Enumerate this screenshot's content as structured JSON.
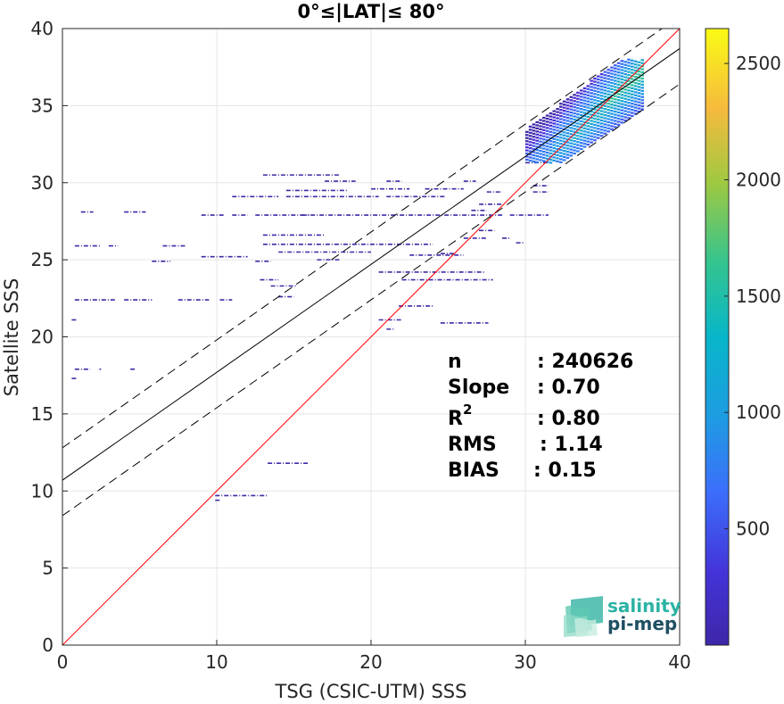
{
  "chart_data": {
    "type": "heatmap",
    "title": "0°≤|LAT|≤ 80°",
    "xlabel": "TSG (CSIC-UTM) SSS",
    "ylabel": "Satellite SSS",
    "xlim": [
      0,
      40
    ],
    "ylim": [
      0,
      40
    ],
    "xticks": [
      "0",
      "10",
      "20",
      "30",
      "40"
    ],
    "yticks": [
      "0",
      "5",
      "10",
      "15",
      "20",
      "25",
      "30",
      "35",
      "40"
    ],
    "grid": true,
    "colorbar": {
      "min": 0,
      "max": 2650,
      "ticks": [
        "500",
        "1000",
        "1500",
        "2000",
        "2500"
      ],
      "tick_values": [
        500,
        1000,
        1500,
        2000,
        2500
      ],
      "colormap": "parula"
    },
    "lines": [
      {
        "name": "1:1 line",
        "slope": 1.0,
        "intercept": 0.0,
        "color": "#ff0000",
        "style": "solid"
      },
      {
        "name": "fit",
        "slope": 0.7,
        "intercept": 10.7,
        "color": "#000000",
        "style": "solid"
      },
      {
        "name": "fit + rms",
        "slope": 0.7,
        "intercept": 12.8,
        "color": "#000000",
        "style": "dashed"
      },
      {
        "name": "fit - rms",
        "slope": 0.7,
        "intercept": 8.4,
        "color": "#000000",
        "style": "dashed"
      }
    ],
    "segments": [
      [
        0.6,
        21.1,
        0.9
      ],
      [
        0.6,
        17.3,
        0.9
      ],
      [
        0.8,
        17.9,
        1.8
      ],
      [
        2.4,
        17.9,
        2.5
      ],
      [
        4.4,
        17.9,
        4.7
      ],
      [
        0.8,
        22.4,
        3.5
      ],
      [
        4.0,
        22.4,
        5.8
      ],
      [
        7.5,
        22.4,
        9.5
      ],
      [
        10.2,
        22.4,
        11.0
      ],
      [
        0.8,
        25.9,
        2.5
      ],
      [
        3.0,
        25.9,
        3.6
      ],
      [
        6.5,
        25.9,
        8.0
      ],
      [
        5.8,
        24.9,
        7.0
      ],
      [
        9.0,
        25.2,
        12.0
      ],
      [
        12.5,
        24.9,
        13.5
      ],
      [
        1.2,
        28.1,
        2.0
      ],
      [
        4.0,
        28.1,
        5.4
      ],
      [
        9.0,
        27.9,
        10.5
      ],
      [
        11.0,
        27.9,
        12.0
      ],
      [
        12.5,
        27.9,
        16.0
      ],
      [
        15.5,
        27.9,
        28.5
      ],
      [
        13.0,
        26.6,
        17.0
      ],
      [
        13.0,
        26.0,
        24.0
      ],
      [
        14.0,
        25.5,
        20.0
      ],
      [
        11.0,
        29.1,
        14.0
      ],
      [
        14.5,
        29.1,
        20.5
      ],
      [
        21.0,
        29.1,
        24.8
      ],
      [
        13.0,
        30.5,
        18.0
      ],
      [
        17.0,
        30.1,
        19.0
      ],
      [
        20.0,
        29.6,
        22.5
      ],
      [
        23.5,
        29.6,
        26.0
      ],
      [
        14.5,
        29.5,
        18.5
      ],
      [
        21.0,
        30.1,
        22.0
      ],
      [
        26.0,
        30.1,
        26.8
      ],
      [
        12.8,
        23.7,
        14.0
      ],
      [
        13.5,
        23.3,
        15.2
      ],
      [
        14.0,
        22.6,
        15.0
      ],
      [
        16.5,
        25.0,
        18.0
      ],
      [
        20.5,
        24.2,
        27.4
      ],
      [
        22.0,
        23.7,
        27.9
      ],
      [
        22.5,
        25.3,
        26.0
      ],
      [
        20.5,
        21.1,
        22.0
      ],
      [
        21.0,
        20.5,
        21.5
      ],
      [
        21.8,
        22.0,
        24.1
      ],
      [
        24.5,
        20.9,
        27.6
      ],
      [
        24.5,
        25.4,
        25.5
      ],
      [
        26.0,
        26.4,
        27.5
      ],
      [
        27.0,
        26.9,
        28.0
      ],
      [
        28.5,
        26.4,
        29.0
      ],
      [
        29.4,
        26.1,
        29.9
      ],
      [
        27.0,
        28.6,
        28.5
      ],
      [
        27.5,
        29.4,
        28.5
      ],
      [
        30.5,
        29.8,
        31.5
      ],
      [
        30.5,
        29.4,
        31.5
      ],
      [
        29.0,
        27.9,
        31.5
      ],
      [
        30.0,
        31.3,
        31.5
      ],
      [
        26.5,
        28.2,
        27.5
      ],
      [
        13.3,
        11.8,
        16.0
      ],
      [
        9.9,
        9.7,
        13.3
      ],
      [
        9.9,
        9.4,
        10.2
      ]
    ]
  },
  "stats": {
    "n_label": "n",
    "n_value": ": 240626",
    "slope_label": "Slope",
    "slope_value": ": 0.70",
    "r2_label": "R",
    "r2_sup": "2",
    "r2_value": ": 0.80",
    "rms_label": "RMS",
    "rms_value": ": 1.14",
    "bias_label": "BIAS",
    "bias_value": ": 0.15"
  },
  "logo": {
    "line1": "salinity",
    "line2": "pi-mep",
    "color1": "#2bb3a4",
    "color2": "#1f4f63"
  }
}
